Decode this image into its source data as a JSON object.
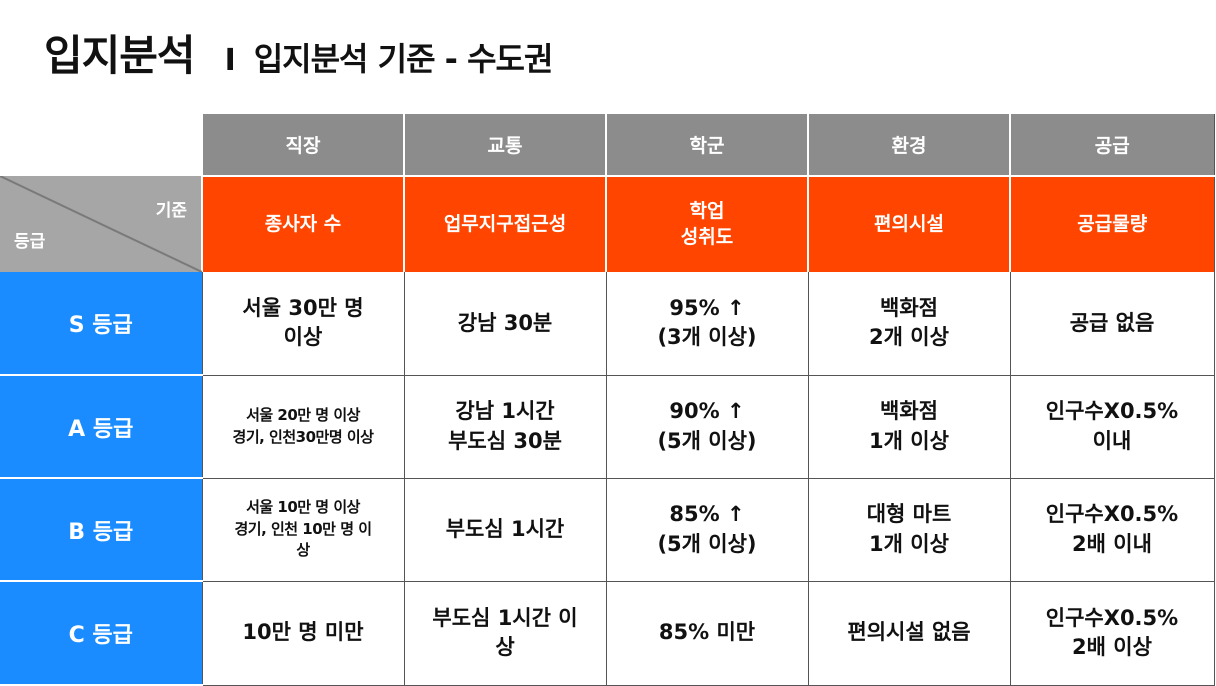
{
  "title": {
    "main": "입지분석",
    "separator": "I",
    "sub": "입지분석 기준 - 수도권"
  },
  "header": {
    "criteria_label": "기준",
    "grade_label": "등급",
    "categories": [
      "직장",
      "교통",
      "학군",
      "환경",
      "공급"
    ],
    "criteria": [
      [
        "종사자 수"
      ],
      [
        "업무지구접근성"
      ],
      [
        "학업",
        "성취도"
      ],
      [
        "편의시설"
      ],
      [
        "공급물량"
      ]
    ]
  },
  "rows": [
    {
      "grade": "S 등급",
      "cells": [
        [
          "서울 30만 명",
          "이상"
        ],
        [
          "강남 30분"
        ],
        [
          "95% ↑",
          "(3개 이상)"
        ],
        [
          "백화점",
          "2개 이상"
        ],
        [
          "공급 없음"
        ]
      ]
    },
    {
      "grade": "A 등급",
      "cells": [
        [
          "서울 20만 명 이상",
          "경기, 인천30만명 이상"
        ],
        [
          "강남 1시간",
          "부도심 30분"
        ],
        [
          "90% ↑",
          "(5개 이상)"
        ],
        [
          "백화점",
          "1개 이상"
        ],
        [
          "인구수X0.5%",
          "이내"
        ]
      ]
    },
    {
      "grade": "B 등급",
      "cells": [
        [
          "서울 10만 명 이상",
          "경기, 인천 10만 명 이",
          "상"
        ],
        [
          "부도심 1시간"
        ],
        [
          "85% ↑",
          "(5개 이상)"
        ],
        [
          "대형 마트",
          "1개 이상"
        ],
        [
          "인구수X0.5%",
          "2배 이내"
        ]
      ]
    },
    {
      "grade": "C 등급",
      "cells": [
        [
          "10만 명 미만"
        ],
        [
          "부도심 1시간 이",
          "상"
        ],
        [
          "85% 미만"
        ],
        [
          "편의시설 없음"
        ],
        [
          "인구수X0.5%",
          "2배 이상"
        ]
      ]
    }
  ],
  "colors": {
    "category_bg": "#8c8c8c",
    "criteria_bg": "#ff4500",
    "grade_bg": "#1a8cff",
    "diagonal_bg": "#a6a6a6"
  }
}
